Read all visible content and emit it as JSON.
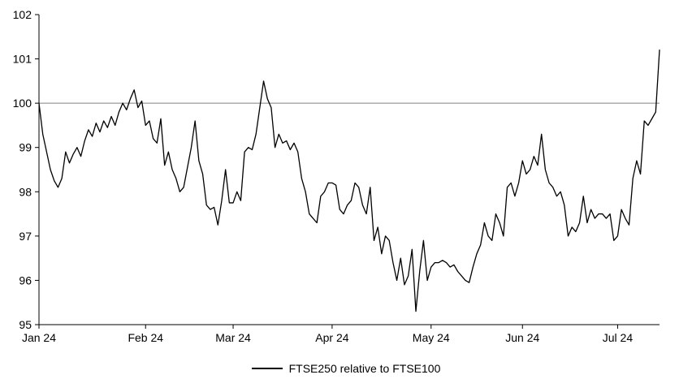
{
  "chart_data": {
    "type": "line",
    "title": "",
    "xlabel": "",
    "ylabel": "",
    "ylim": [
      95,
      102
    ],
    "y_ticks": [
      95,
      96,
      97,
      98,
      99,
      100,
      101,
      102
    ],
    "x_tick_labels": [
      "Jan 24",
      "Feb 24",
      "Mar 24",
      "Apr 24",
      "May 24",
      "Jun 24",
      "Jul 24"
    ],
    "x_tick_indices": [
      0,
      28,
      51,
      77,
      103,
      127,
      152
    ],
    "reference_line_y": 100,
    "grid": false,
    "legend_position": "bottom",
    "colors": {
      "axis": "#000000",
      "series": "#000000",
      "reference_line": "#808080",
      "text": "#000000",
      "background": "#ffffff"
    },
    "series": [
      {
        "name": "FTSE250 relative to FTSE100",
        "color": "#000000",
        "values": [
          100,
          99.3,
          98.9,
          98.5,
          98.25,
          98.1,
          98.3,
          98.9,
          98.65,
          98.85,
          99,
          98.8,
          99.15,
          99.4,
          99.25,
          99.55,
          99.35,
          99.6,
          99.45,
          99.7,
          99.5,
          99.8,
          100,
          99.85,
          100.1,
          100.3,
          99.9,
          100.05,
          99.5,
          99.6,
          99.2,
          99.1,
          99.65,
          98.6,
          98.9,
          98.5,
          98.3,
          98,
          98.1,
          98.55,
          99,
          99.6,
          98.7,
          98.4,
          97.7,
          97.6,
          97.65,
          97.25,
          97.8,
          98.5,
          97.75,
          97.75,
          98,
          97.8,
          98.9,
          99,
          98.95,
          99.3,
          99.9,
          100.5,
          100.1,
          99.9,
          99,
          99.3,
          99.1,
          99.15,
          98.95,
          99.1,
          98.9,
          98.3,
          98,
          97.5,
          97.4,
          97.3,
          97.9,
          98,
          98.2,
          98.2,
          98.15,
          97.6,
          97.5,
          97.7,
          97.8,
          98.2,
          98.1,
          97.7,
          97.5,
          98.1,
          96.9,
          97.2,
          96.6,
          97,
          96.9,
          96.4,
          96,
          96.5,
          95.9,
          96.1,
          96.7,
          95.3,
          96.2,
          96.9,
          96,
          96.3,
          96.4,
          96.4,
          96.45,
          96.4,
          96.3,
          96.35,
          96.2,
          96.1,
          96,
          95.95,
          96.3,
          96.6,
          96.8,
          97.3,
          97,
          96.9,
          97.5,
          97.3,
          97,
          98.1,
          98.2,
          97.9,
          98.2,
          98.7,
          98.4,
          98.5,
          98.8,
          98.6,
          99.3,
          98.5,
          98.2,
          98.1,
          97.9,
          98,
          97.7,
          97,
          97.2,
          97.1,
          97.3,
          97.9,
          97.3,
          97.6,
          97.4,
          97.5,
          97.5,
          97.4,
          97.5,
          96.9,
          97,
          97.6,
          97.4,
          97.25,
          98.3,
          98.7,
          98.4,
          99.6,
          99.5,
          99.65,
          99.8,
          101.2
        ]
      }
    ]
  }
}
